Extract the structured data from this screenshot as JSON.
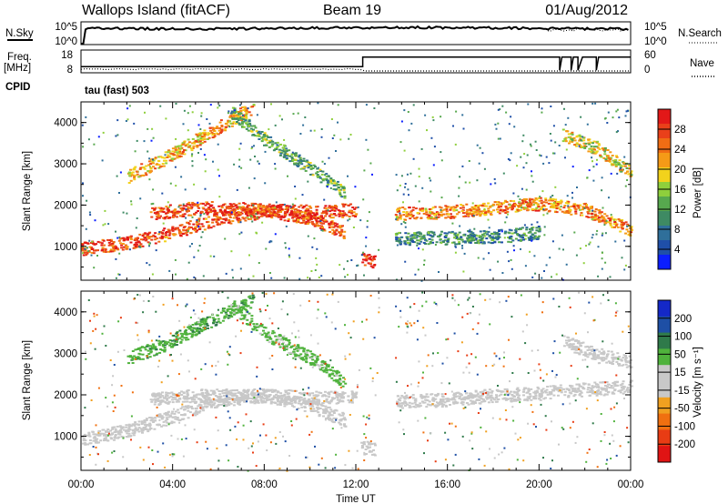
{
  "header": {
    "station": "Wallops Island (fitACF)",
    "beam": "Beam 19",
    "date": "01/Aug/2012"
  },
  "top_panels": {
    "nsky_label": "N.Sky",
    "nsearch_label": "N.Search",
    "freq_label_1": "Freq.",
    "freq_label_2": "[MHz]",
    "nave_label": "Nave",
    "cpid_label": "CPID",
    "cpid_value": "tau (fast) 503",
    "noise_ticks": [
      "10^5",
      "10^0"
    ],
    "freq_ticks": [
      "18",
      "8"
    ],
    "nave_ticks": [
      "60",
      "0"
    ]
  },
  "colors": {
    "power_scale": [
      "#0b1eff",
      "#1f4fa8",
      "#2f6f9a",
      "#3e8a63",
      "#57a84e",
      "#8fcf3c",
      "#f2d21c",
      "#f59a17",
      "#f06d14",
      "#e9401a",
      "#e21818"
    ],
    "velocity_scale": [
      "#1428c8",
      "#1e4fa5",
      "#2f7a4a",
      "#4fb23c",
      "#c8c8c8",
      "#c8c8c8",
      "#f0a020",
      "#f07010",
      "#e83c14",
      "#e01414"
    ]
  },
  "chart_data": [
    {
      "type": "heatmap",
      "name_printed": "",
      "xlabel": "Time UT",
      "ylabel": "Slant Range [km]",
      "xlim": [
        0,
        24
      ],
      "ylim": [
        180,
        4500
      ],
      "xticks": [
        "00:00",
        "04:00",
        "08:00",
        "12:00",
        "16:00",
        "20:00",
        "00:00"
      ],
      "yticks": [
        "1000",
        "2000",
        "3000",
        "4000"
      ],
      "colorbar": {
        "label": "Power [dB]",
        "ticks": [
          "4",
          "8",
          "12",
          "16",
          "20",
          "24",
          "28"
        ],
        "range": [
          0,
          30
        ]
      },
      "data_gap_hours": [
        13.0,
        13.7
      ],
      "bands": [
        {
          "t": [
            0,
            2,
            4,
            6,
            8,
            10,
            11.5
          ],
          "r": [
            950,
            1100,
            1350,
            1700,
            1850,
            1700,
            1350
          ],
          "level": 25
        },
        {
          "t": [
            3,
            5,
            8,
            10,
            12
          ],
          "r": [
            1800,
            1950,
            1900,
            1850,
            1900
          ],
          "level": 26
        },
        {
          "t": [
            2,
            3.5,
            6,
            7.5
          ],
          "r": [
            2700,
            3100,
            3900,
            4400
          ],
          "level": 20
        },
        {
          "t": [
            6.5,
            8,
            10,
            11.5
          ],
          "r": [
            4300,
            3600,
            2900,
            2300
          ],
          "level": 12
        },
        {
          "t": [
            12.2,
            12.8
          ],
          "r": [
            700,
            650
          ],
          "level": 29
        },
        {
          "t": [
            13.7,
            16,
            18,
            20,
            22,
            24
          ],
          "r": [
            1800,
            1850,
            1950,
            2050,
            1900,
            1400
          ],
          "level": 22
        },
        {
          "t": [
            13.7,
            18,
            20
          ],
          "r": [
            1200,
            1250,
            1350
          ],
          "level": 9
        },
        {
          "t": [
            21,
            22.5,
            24
          ],
          "r": [
            3700,
            3400,
            2800
          ],
          "level": 18
        }
      ]
    },
    {
      "type": "heatmap",
      "name_printed": "",
      "xlabel": "Time UT",
      "ylabel": "Slant Range [km]",
      "xlim": [
        0,
        24
      ],
      "ylim": [
        180,
        4500
      ],
      "xticks": [
        "00:00",
        "04:00",
        "08:00",
        "12:00",
        "16:00",
        "20:00",
        "00:00"
      ],
      "yticks": [
        "1000",
        "2000",
        "3000",
        "4000"
      ],
      "colorbar": {
        "label": "Velocity [m s⁻¹]",
        "ticks": [
          "200",
          "100",
          "50",
          "15",
          "-15",
          "-50",
          "-100",
          "-200"
        ],
        "range": [
          -250,
          250
        ]
      },
      "data_gap_hours": [
        13.0,
        13.7
      ],
      "bands": [
        {
          "t": [
            0,
            2,
            4,
            6,
            8,
            10,
            11.5
          ],
          "r": [
            950,
            1150,
            1500,
            1900,
            2000,
            1750,
            1400
          ],
          "level": 0
        },
        {
          "t": [
            3,
            5,
            8,
            10,
            12
          ],
          "r": [
            1900,
            2000,
            2000,
            1950,
            1950
          ],
          "level": 0
        },
        {
          "t": [
            2,
            3.5,
            6,
            7.5
          ],
          "r": [
            2900,
            3200,
            3900,
            4300
          ],
          "level": 80
        },
        {
          "t": [
            6.5,
            8,
            10,
            11.5
          ],
          "r": [
            4200,
            3500,
            2900,
            2300
          ],
          "level": 70
        },
        {
          "t": [
            12.2,
            12.8
          ],
          "r": [
            750,
            700
          ],
          "level": 0
        },
        {
          "t": [
            13.7,
            16,
            18,
            20,
            22,
            24
          ],
          "r": [
            1850,
            1900,
            2000,
            2050,
            2150,
            2200
          ],
          "level": 0
        },
        {
          "t": [
            21,
            22.5,
            24
          ],
          "r": [
            3300,
            3000,
            2800
          ],
          "level": 0
        }
      ]
    }
  ]
}
